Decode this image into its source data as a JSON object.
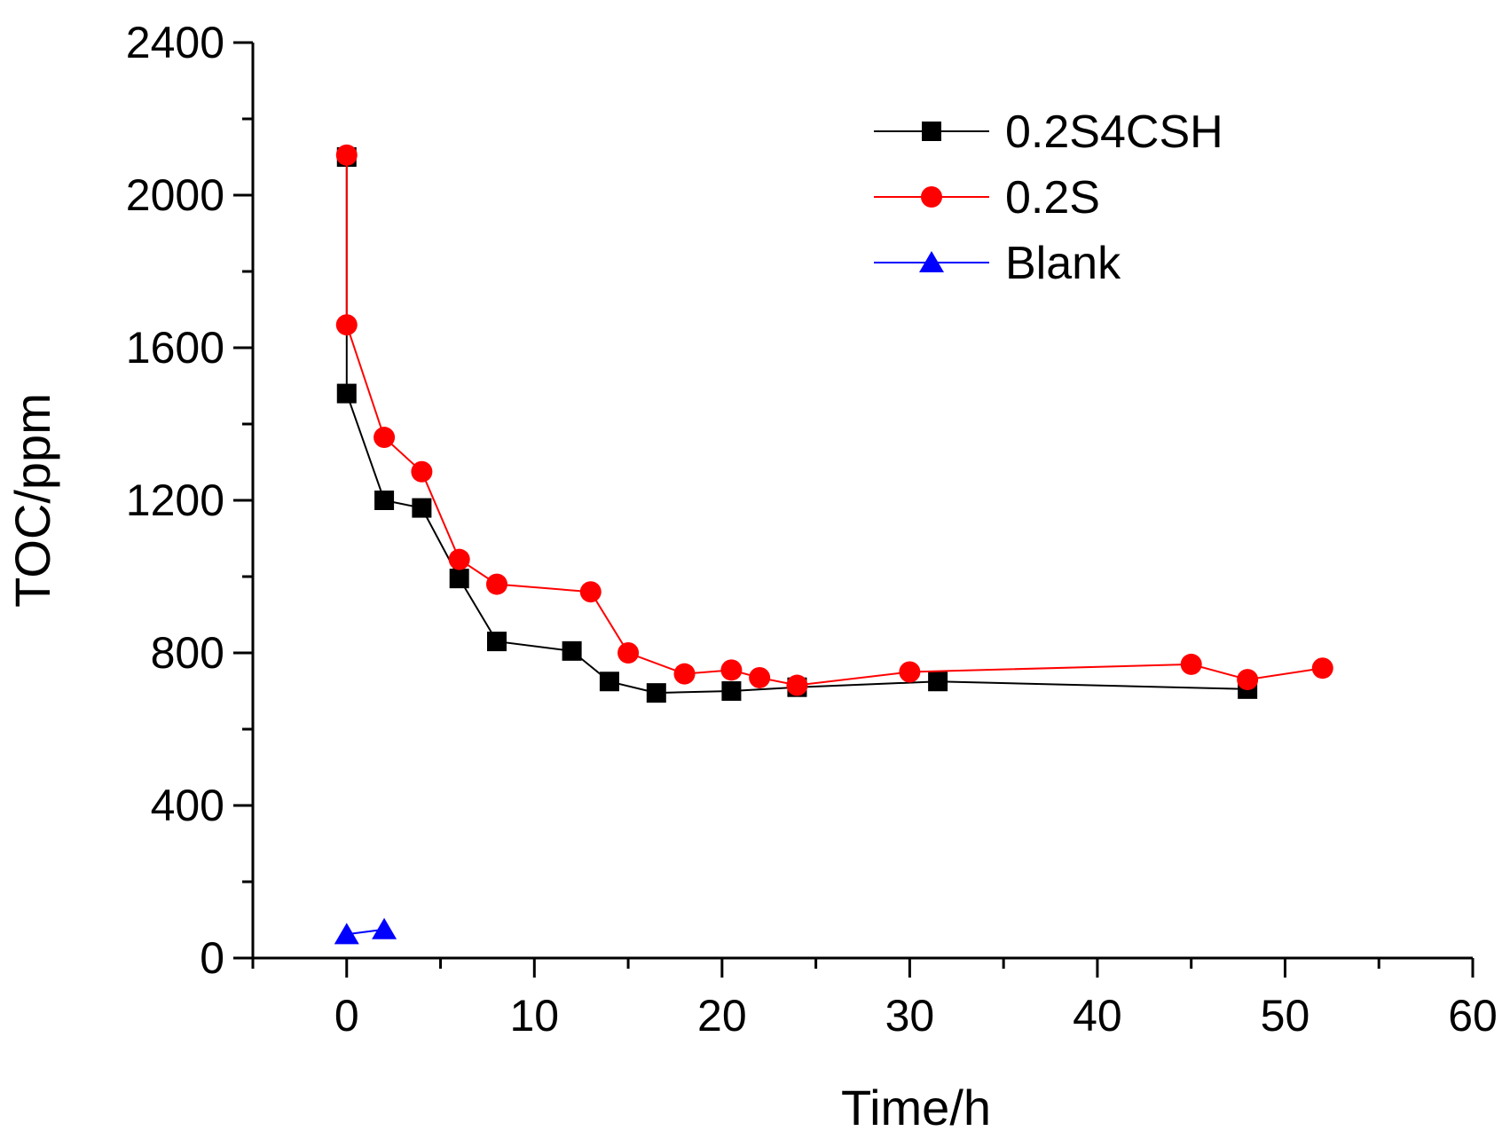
{
  "chart_data": {
    "type": "line",
    "xlabel": "Time/h",
    "ylabel": "TOC/ppm",
    "xlim": [
      -5,
      60
    ],
    "ylim": [
      0,
      2400
    ],
    "xticks": [
      0,
      10,
      20,
      30,
      40,
      50,
      60
    ],
    "yticks": [
      0,
      400,
      800,
      1200,
      1600,
      2000,
      2400
    ],
    "grid": false,
    "legend_position": "top-right",
    "series": [
      {
        "name": "0.2S4CSH",
        "color": "#000000",
        "marker": "square",
        "x": [
          0,
          0,
          2,
          4,
          6,
          8,
          12,
          14,
          16.5,
          20.5,
          24,
          31.5,
          48
        ],
        "y": [
          2100,
          1480,
          1200,
          1180,
          995,
          830,
          805,
          725,
          695,
          700,
          710,
          725,
          705
        ]
      },
      {
        "name": "0.2S",
        "color": "#ff0000",
        "marker": "circle",
        "x": [
          0,
          0,
          2,
          4,
          6,
          8,
          13,
          15,
          18,
          20.5,
          22,
          24,
          30,
          45,
          48,
          52
        ],
        "y": [
          2105,
          1660,
          1365,
          1275,
          1045,
          980,
          960,
          800,
          745,
          755,
          735,
          715,
          750,
          770,
          730,
          760
        ]
      },
      {
        "name": "Blank",
        "color": "#0000ff",
        "marker": "triangle",
        "x": [
          0,
          2
        ],
        "y": [
          62,
          75
        ]
      }
    ]
  }
}
